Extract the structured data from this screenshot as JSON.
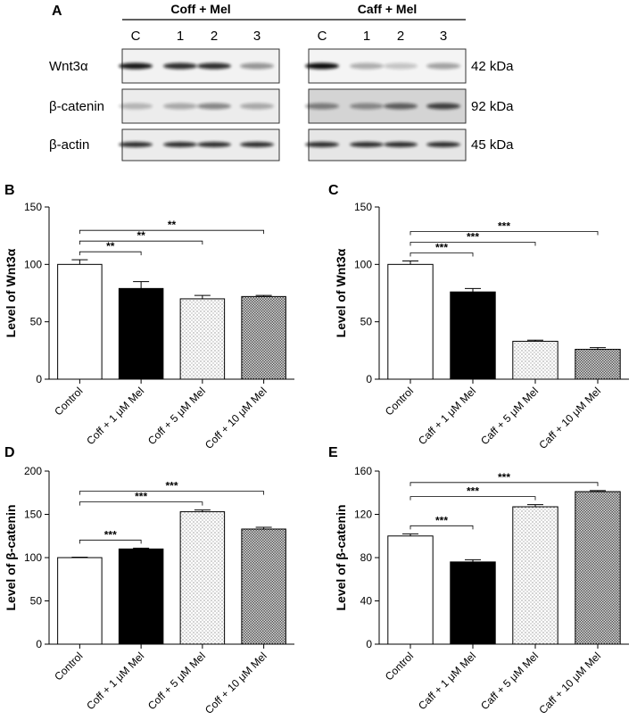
{
  "blot": {
    "panel": "A",
    "groups": [
      "Coff + Mel",
      "Caff + Mel"
    ],
    "lanes": [
      "C",
      "1",
      "2",
      "3"
    ],
    "rows": [
      {
        "label": "Wnt3α",
        "size": "42 kDa"
      },
      {
        "label": "β-catenin",
        "size": "92 kDa"
      },
      {
        "label": "β-actin",
        "size": "45 kDa"
      }
    ]
  },
  "chart_data": [
    {
      "type": "bar",
      "panel": "B",
      "y_label": "Level of Wnt3α",
      "categories": [
        "Control",
        "Coff + 1 μM Mel",
        "Coff + 5 μM Mel",
        "Coff + 10 μM Mel"
      ],
      "values": [
        100,
        79,
        70,
        72
      ],
      "errors": [
        4,
        6,
        3,
        1
      ],
      "bar_fills": [
        "white",
        "black",
        "dots",
        "crosshatch"
      ],
      "ylim": [
        0,
        150
      ],
      "yticks": [
        0,
        50,
        100,
        150
      ],
      "brackets": [
        {
          "from": "Control",
          "to": "Coff + 1 μM Mel",
          "label": "**"
        },
        {
          "from": "Control",
          "to": "Coff + 5 μM Mel",
          "label": "**"
        },
        {
          "from": "Control",
          "to": "Coff + 10 μM Mel",
          "label": "**"
        }
      ]
    },
    {
      "type": "bar",
      "panel": "C",
      "y_label": "Level of Wnt3α",
      "categories": [
        "Control",
        "Caff + 1 μM Mel",
        "Caff + 5 μM Mel",
        "Caff + 10 μM Mel"
      ],
      "values": [
        100,
        76,
        33,
        26
      ],
      "errors": [
        3,
        3,
        1,
        1.5
      ],
      "bar_fills": [
        "white",
        "black",
        "dots",
        "crosshatch"
      ],
      "ylim": [
        0,
        150
      ],
      "yticks": [
        0,
        50,
        100,
        150
      ],
      "brackets": [
        {
          "from": "Control",
          "to": "Caff + 1 μM Mel",
          "label": "***"
        },
        {
          "from": "Control",
          "to": "Caff + 5 μM Mel",
          "label": "***"
        },
        {
          "from": "Control",
          "to": "Caff + 10 μM Mel",
          "label": "***"
        }
      ]
    },
    {
      "type": "bar",
      "panel": "D",
      "y_label": "Level of β-catenin",
      "categories": [
        "Control",
        "Coff + 1 μM Mel",
        "Coff + 5 μM Mel",
        "Coff + 10 μM Mel"
      ],
      "values": [
        100,
        110,
        153,
        133
      ],
      "errors": [
        0.5,
        1,
        2,
        2
      ],
      "bar_fills": [
        "white",
        "black",
        "dots",
        "crosshatch"
      ],
      "ylim": [
        0,
        200
      ],
      "yticks": [
        0,
        50,
        100,
        150,
        200
      ],
      "brackets": [
        {
          "from": "Control",
          "to": "Coff + 1 μM Mel",
          "label": "***"
        },
        {
          "from": "Control",
          "to": "Coff + 5 μM Mel",
          "label": "***"
        },
        {
          "from": "Control",
          "to": "Coff + 10 μM Mel",
          "label": "***"
        }
      ]
    },
    {
      "type": "bar",
      "panel": "E",
      "y_label": "Level of β-catenin",
      "categories": [
        "Control",
        "Caff + 1 μM Mel",
        "Caff + 5 μM Mel",
        "Caff + 10 μM Mel"
      ],
      "values": [
        100,
        76,
        127,
        141
      ],
      "errors": [
        2,
        2,
        2,
        1
      ],
      "bar_fills": [
        "white",
        "black",
        "dots",
        "crosshatch"
      ],
      "ylim": [
        0,
        160
      ],
      "yticks": [
        0,
        40,
        80,
        120,
        160
      ],
      "brackets": [
        {
          "from": "Control",
          "to": "Caff + 1 μM Mel",
          "label": "***"
        },
        {
          "from": "Control",
          "to": "Caff + 5 μM Mel",
          "label": "***"
        },
        {
          "from": "Control",
          "to": "Caff + 10 μM Mel",
          "label": "***"
        }
      ]
    }
  ]
}
